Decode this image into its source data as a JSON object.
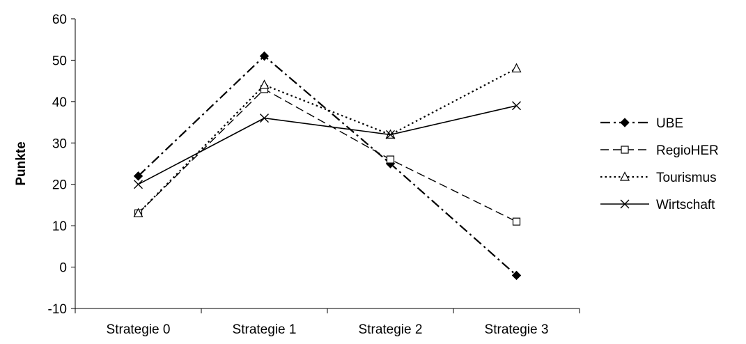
{
  "chart_data": {
    "type": "line",
    "title": "",
    "xlabel": "",
    "ylabel": "Punkte",
    "categories": [
      "Strategie 0",
      "Strategie 1",
      "Strategie 2",
      "Strategie 3"
    ],
    "ylim": [
      -10,
      60
    ],
    "yticks": [
      -10,
      0,
      10,
      20,
      30,
      40,
      50,
      60
    ],
    "grid": false,
    "legend_position": "right",
    "series": [
      {
        "name": "UBE",
        "values": [
          22,
          51,
          25,
          -2
        ],
        "marker": "filled-diamond",
        "line_style": "dash-dot",
        "color": "#000000"
      },
      {
        "name": "RegioHER",
        "values": [
          13,
          43,
          26,
          11
        ],
        "marker": "open-square",
        "line_style": "dashed",
        "color": "#000000"
      },
      {
        "name": "Tourismus",
        "values": [
          13,
          44,
          32,
          48
        ],
        "marker": "open-triangle",
        "line_style": "dotted",
        "color": "#000000"
      },
      {
        "name": "Wirtschaft",
        "values": [
          20,
          36,
          32,
          39
        ],
        "marker": "x-cross",
        "line_style": "solid",
        "color": "#000000"
      }
    ]
  }
}
